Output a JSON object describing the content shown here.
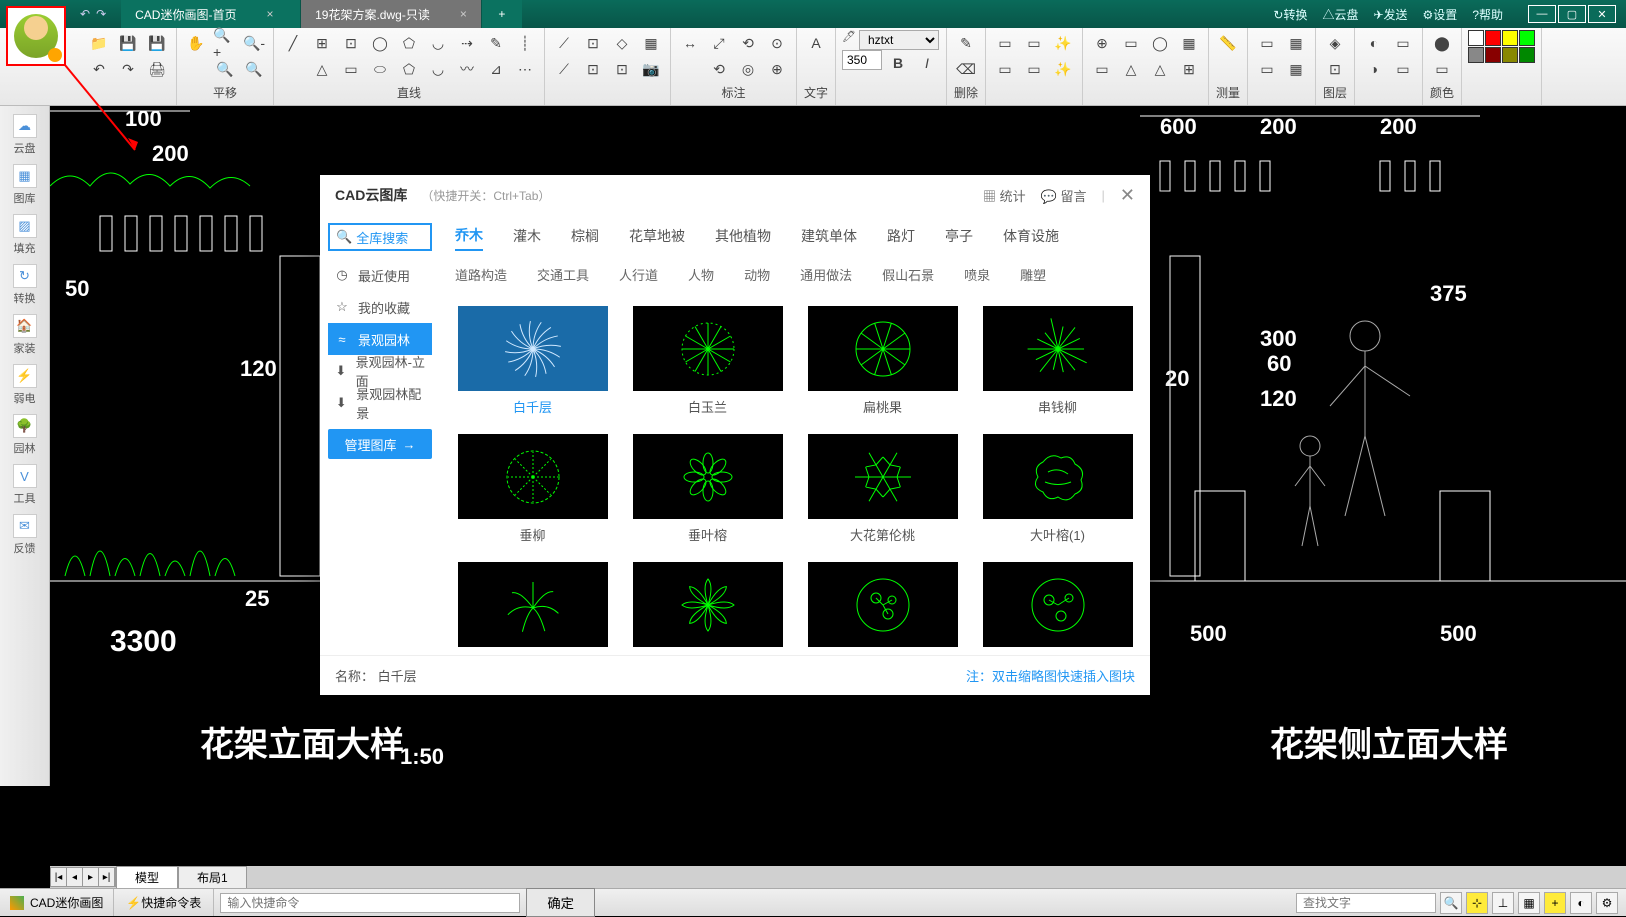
{
  "titlebar": {
    "tabs": [
      {
        "label": "CAD迷你画图-首页",
        "active": false
      },
      {
        "label": "19花架方案.dwg-只读",
        "active": true
      }
    ],
    "right": [
      {
        "icon": "↻",
        "label": "转换"
      },
      {
        "icon": "△",
        "label": "云盘"
      },
      {
        "icon": "✈",
        "label": "发送"
      },
      {
        "icon": "⚙",
        "label": "设置"
      },
      {
        "icon": "?",
        "label": "帮助"
      }
    ]
  },
  "toolbar": {
    "groups": [
      {
        "label": "",
        "rows": [
          [
            "📁",
            "💾",
            "💾"
          ],
          [
            "↶",
            "↷",
            "🖨"
          ]
        ]
      },
      {
        "label": "平移",
        "rows": [
          [
            "✋",
            "🔍+",
            "🔍-"
          ],
          [
            "",
            "🔍",
            "🔍"
          ]
        ]
      },
      {
        "label": "直线",
        "rows": [
          [
            "╱",
            "⊞",
            "⊡",
            "◯",
            "⬠",
            "◡",
            "⇢",
            "✎",
            "┊"
          ],
          [
            "",
            "△",
            "▭",
            "⬭",
            "⬠",
            "◡",
            "〰",
            "⊿",
            "⋯"
          ]
        ]
      },
      {
        "label": "",
        "rows": [
          [
            "⟋",
            "⊡",
            "◇",
            "▦"
          ],
          [
            "⟋",
            "⊡",
            "⊡",
            "📷"
          ]
        ]
      },
      {
        "label": "标注",
        "rows": [
          [
            "↔",
            "⤢",
            "⟲",
            "⊙"
          ],
          [
            "",
            "⟲",
            "◎",
            "⊕"
          ]
        ]
      },
      {
        "label": "文字",
        "rows": [
          [
            "A"
          ],
          [
            ""
          ]
        ]
      }
    ],
    "font_select": "hztxt",
    "font_size": "350",
    "groups2": [
      {
        "label": "删除",
        "rows": [
          [
            "✎"
          ],
          [
            "⌫"
          ]
        ]
      },
      {
        "label": "",
        "rows": [
          [
            "▭",
            "▭",
            "✨"
          ],
          [
            "▭",
            "▭",
            "✨"
          ]
        ]
      },
      {
        "label": "",
        "rows": [
          [
            "⊕",
            "▭",
            "◯",
            "▦"
          ],
          [
            "▭",
            "△",
            "△",
            "⊞"
          ]
        ]
      },
      {
        "label": "测量",
        "rows": [
          [
            "📏"
          ],
          [
            ""
          ]
        ]
      },
      {
        "label": "",
        "rows": [
          [
            "▭",
            "▦"
          ],
          [
            "▭",
            "▦"
          ]
        ]
      },
      {
        "label": "图层",
        "rows": [
          [
            "◈"
          ],
          [
            "⊡"
          ]
        ]
      },
      {
        "label": "",
        "rows": [
          [
            "◐",
            "▭"
          ],
          [
            "◑",
            "▭"
          ]
        ]
      },
      {
        "label": "颜色",
        "rows": [
          [
            "⬤"
          ],
          [
            "▭"
          ]
        ]
      }
    ],
    "colors": [
      "#fff",
      "#f00",
      "#ff0",
      "#0f0",
      "#888",
      "#800",
      "#880",
      "#080"
    ]
  },
  "leftbar": [
    {
      "icon": "☁",
      "label": "云盘"
    },
    {
      "icon": "▦",
      "label": "图库"
    },
    {
      "icon": "▨",
      "label": "填充"
    },
    {
      "icon": "↻",
      "label": "转换"
    },
    {
      "icon": "🏠",
      "label": "家装"
    },
    {
      "icon": "⚡",
      "label": "弱电"
    },
    {
      "icon": "🌳",
      "label": "园林"
    },
    {
      "icon": "V",
      "label": "工具"
    },
    {
      "icon": "✉",
      "label": "反馈"
    }
  ],
  "canvas": {
    "dims_left": [
      "100",
      "200",
      "50",
      "120",
      "25",
      "3300"
    ],
    "dims_right_top": [
      "600",
      "200",
      "200"
    ],
    "dims_right_mid": [
      "375",
      "300",
      "60",
      "20",
      "120"
    ],
    "dims_right_bot": [
      "500",
      "500"
    ],
    "caption_left": "花架立面大样",
    "caption_left_scale": "1:50",
    "caption_right": "花架侧立面大样"
  },
  "dialog": {
    "title": "CAD云图库",
    "subtitle": "（快捷开关：Ctrl+Tab）",
    "stats_label": "统计",
    "msg_label": "留言",
    "search_label": "全库搜索",
    "side": [
      {
        "icon": "◷",
        "label": "最近使用"
      },
      {
        "icon": "☆",
        "label": "我的收藏"
      },
      {
        "icon": "≈",
        "label": "景观园林",
        "active": true
      },
      {
        "icon": "⬇",
        "label": "景观园林-立面"
      },
      {
        "icon": "⬇",
        "label": "景观园林配景"
      }
    ],
    "manage_label": "管理图库",
    "cats1": [
      "乔木",
      "灌木",
      "棕榈",
      "花草地被",
      "其他植物",
      "建筑单体",
      "路灯",
      "亭子",
      "体育设施"
    ],
    "cats1_active": 0,
    "cats2": [
      "道路构造",
      "交通工具",
      "人行道",
      "人物",
      "动物",
      "通用做法",
      "假山石景",
      "喷泉",
      "雕塑"
    ],
    "items": [
      {
        "label": "白千层",
        "sel": true,
        "shape": "spiral"
      },
      {
        "label": "白玉兰",
        "shape": "radial"
      },
      {
        "label": "扁桃果",
        "shape": "radial2"
      },
      {
        "label": "串钱柳",
        "shape": "spider"
      },
      {
        "label": "垂柳",
        "shape": "flower"
      },
      {
        "label": "垂叶榕",
        "shape": "flower2"
      },
      {
        "label": "大花第伦桃",
        "shape": "star6"
      },
      {
        "label": "大叶榕(1)",
        "shape": "cloud"
      },
      {
        "label": "",
        "shape": "leaf"
      },
      {
        "label": "",
        "shape": "lotus"
      },
      {
        "label": "",
        "shape": "circle1"
      },
      {
        "label": "",
        "shape": "circle2"
      }
    ],
    "foot_name_label": "名称：",
    "foot_name": "白千层",
    "foot_hint": "注：双击缩略图快速插入图块"
  },
  "bottombar": {
    "tabs": [
      "模型",
      "布局1"
    ],
    "active": 0
  },
  "statusbar": {
    "app": "CAD迷你画图",
    "quickcmd": "快捷命令表",
    "input_ph": "输入快捷命令",
    "confirm": "确定",
    "search_ph": "查找文字"
  }
}
